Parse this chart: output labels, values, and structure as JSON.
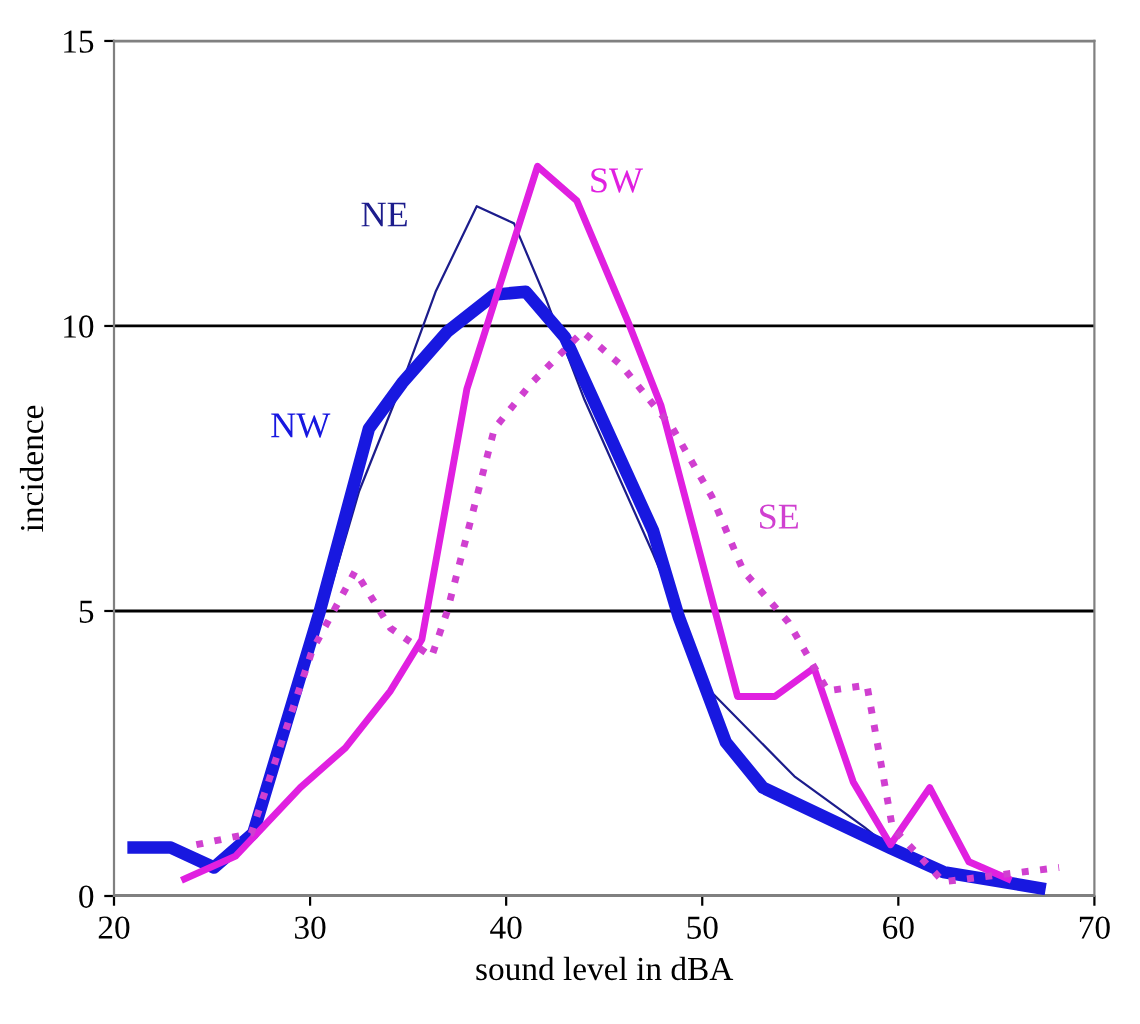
{
  "chart_data": {
    "type": "line",
    "xlabel": "sound level in dBA",
    "ylabel": "incidence",
    "xlim": [
      20,
      70
    ],
    "ylim": [
      0,
      15
    ],
    "xticks": [
      20,
      30,
      40,
      50,
      60,
      70
    ],
    "yticks": [
      0,
      5,
      10,
      15
    ],
    "grid": "y",
    "legend": false,
    "series": [
      {
        "name": "NE",
        "color": "#1c1c8c",
        "line_style": "solid",
        "x": [
          27.1,
          30.8,
          32.5,
          34.7,
          36.4,
          38.5,
          40.4,
          42,
          44,
          47.5,
          50.4,
          54.7,
          58.3,
          59.6,
          62.3,
          67.2
        ],
        "values": [
          1.2,
          5.1,
          7.1,
          9.0,
          10.6,
          12.1,
          11.8,
          10.5,
          8.7,
          6.0,
          3.6,
          2.1,
          1.2,
          0.84,
          0.42,
          0.14
        ]
      },
      {
        "name": "NW",
        "color": "#1818e0",
        "line_style": "solid",
        "x": [
          21,
          22.9,
          25.1,
          27.1,
          30.5,
          33,
          34.7,
          37,
          39.4,
          41,
          43,
          47.5,
          48.8,
          51.2,
          53.1,
          59.6,
          62.3,
          67.2
        ],
        "values": [
          0.85,
          0.85,
          0.5,
          1.1,
          5.0,
          8.2,
          9.0,
          9.9,
          10.55,
          10.6,
          9.8,
          6.4,
          4.9,
          2.7,
          1.9,
          0.84,
          0.42,
          0.14
        ]
      },
      {
        "name": "SW",
        "color": "#e020e0",
        "line_style": "solid",
        "x": [
          23.6,
          26.2,
          29.5,
          31.8,
          34.1,
          35.7,
          38,
          41.6,
          43.6,
          46.3,
          47.9,
          51.8,
          53.7,
          55.7,
          57.7,
          59.6,
          61.6,
          63.6,
          65.6
        ],
        "values": [
          0.3,
          0.7,
          1.9,
          2.6,
          3.6,
          4.5,
          8.9,
          12.8,
          12.2,
          10.0,
          8.6,
          3.5,
          3.5,
          4.0,
          2.0,
          0.9,
          1.9,
          0.6,
          0.3
        ]
      },
      {
        "name": "SE",
        "color": "#d040d0",
        "line_style": "dotted",
        "x": [
          24.2,
          27,
          30.1,
          32.3,
          34.1,
          36.2,
          37,
          39.4,
          41.3,
          43.9,
          45.9,
          48.5,
          50.5,
          52.1,
          54.4,
          56.4,
          58.4,
          59.7,
          62.3,
          68.2
        ],
        "values": [
          0.9,
          1.1,
          4.3,
          5.7,
          4.7,
          4.2,
          5.0,
          8.2,
          9.0,
          9.9,
          9.3,
          8.2,
          7.0,
          5.7,
          4.8,
          3.6,
          3.7,
          1.2,
          0.25,
          0.5
        ]
      }
    ]
  }
}
